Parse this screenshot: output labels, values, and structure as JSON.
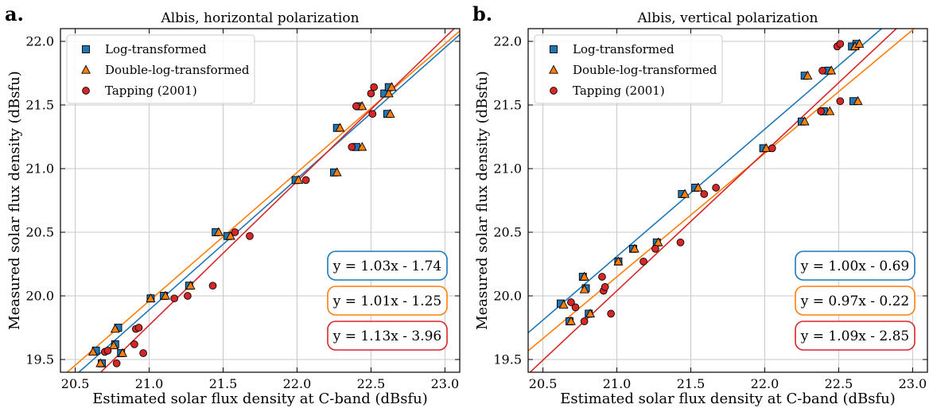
{
  "chart_data": [
    {
      "panel": "a.",
      "type": "scatter",
      "title": "Albis, horizontal polarization",
      "xlabel": "Estimated solar flux density at C-band (dBsfu)",
      "ylabel": "Measured solar flux density (dBsfu)",
      "xlim": [
        20.4,
        23.1
      ],
      "ylim": [
        19.4,
        22.1
      ],
      "xticks": [
        "20.5",
        "21.0",
        "21.5",
        "22.0",
        "22.5",
        "23.0"
      ],
      "yticks": [
        "19.5",
        "20.0",
        "20.5",
        "21.0",
        "21.5",
        "22.0"
      ],
      "grid": true,
      "legend_placement": "top-left",
      "series": [
        {
          "name": "Log-transformed",
          "marker": "square",
          "color": "#1f77b4",
          "fit_label": "y = 1.03x - 1.74",
          "fit": {
            "slope": 1.03,
            "intercept": -1.74
          },
          "points": [
            [
              20.64,
              19.57
            ],
            [
              20.68,
              19.47
            ],
            [
              20.77,
              19.62
            ],
            [
              20.79,
              19.75
            ],
            [
              20.81,
              19.55
            ],
            [
              21.01,
              19.98
            ],
            [
              21.1,
              20.0
            ],
            [
              21.27,
              20.08
            ],
            [
              21.45,
              20.5
            ],
            [
              21.53,
              20.47
            ],
            [
              21.99,
              20.91
            ],
            [
              22.25,
              20.97
            ],
            [
              22.27,
              21.32
            ],
            [
              22.4,
              21.17
            ],
            [
              22.42,
              21.49
            ],
            [
              22.59,
              21.59
            ],
            [
              22.61,
              21.43
            ],
            [
              22.62,
              21.64
            ]
          ]
        },
        {
          "name": "Double-log-transformed",
          "marker": "triangle",
          "color": "#ff7f0e",
          "fit_label": "y = 1.01x - 1.25",
          "fit": {
            "slope": 1.01,
            "intercept": -1.25
          },
          "points": [
            [
              20.62,
              19.56
            ],
            [
              20.67,
              19.47
            ],
            [
              20.76,
              19.61
            ],
            [
              20.77,
              19.74
            ],
            [
              20.82,
              19.55
            ],
            [
              21.01,
              19.98
            ],
            [
              21.11,
              20.0
            ],
            [
              21.28,
              20.08
            ],
            [
              21.47,
              20.5
            ],
            [
              21.55,
              20.47
            ],
            [
              22.01,
              20.91
            ],
            [
              22.27,
              20.97
            ],
            [
              22.29,
              21.32
            ],
            [
              22.44,
              21.17
            ],
            [
              22.44,
              21.49
            ],
            [
              22.62,
              21.59
            ],
            [
              22.63,
              21.43
            ],
            [
              22.64,
              21.64
            ]
          ]
        },
        {
          "name": "Tapping (2001)",
          "marker": "circle",
          "color": "#d62728",
          "fit_label": "y = 1.13x - 3.96",
          "fit": {
            "slope": 1.13,
            "intercept": -3.96
          },
          "points": [
            [
              20.7,
              19.56
            ],
            [
              20.72,
              19.57
            ],
            [
              20.78,
              19.47
            ],
            [
              20.91,
              19.74
            ],
            [
              20.93,
              19.75
            ],
            [
              20.9,
              19.62
            ],
            [
              20.96,
              19.55
            ],
            [
              21.17,
              19.98
            ],
            [
              21.26,
              20.0
            ],
            [
              21.43,
              20.08
            ],
            [
              21.58,
              20.5
            ],
            [
              21.68,
              20.47
            ],
            [
              22.06,
              20.91
            ],
            [
              22.37,
              21.17
            ],
            [
              22.4,
              21.49
            ],
            [
              22.5,
              21.59
            ],
            [
              22.51,
              21.43
            ],
            [
              22.52,
              21.64
            ]
          ]
        }
      ]
    },
    {
      "panel": "b.",
      "type": "scatter",
      "title": "Albis, vertical polarization",
      "xlabel": "Estimated solar flux density at C-band (dBsfu)",
      "ylabel": "Measured solar flux density (dBsfu)",
      "xlim": [
        20.4,
        23.1
      ],
      "ylim": [
        19.4,
        22.1
      ],
      "xticks": [
        "20.5",
        "21.0",
        "21.5",
        "22.0",
        "22.5",
        "23.0"
      ],
      "yticks": [
        "19.5",
        "20.0",
        "20.5",
        "21.0",
        "21.5",
        "22.0"
      ],
      "grid": true,
      "legend_placement": "top-left",
      "series": [
        {
          "name": "Log-transformed",
          "marker": "square",
          "color": "#1f77b4",
          "fit_label": "y = 1.00x - 0.69",
          "fit": {
            "slope": 1.0,
            "intercept": -0.69
          },
          "points": [
            [
              20.62,
              19.94
            ],
            [
              20.68,
              19.8
            ],
            [
              20.77,
              20.15
            ],
            [
              20.79,
              20.06
            ],
            [
              20.81,
              19.86
            ],
            [
              21.01,
              20.27
            ],
            [
              21.11,
              20.37
            ],
            [
              21.27,
              20.42
            ],
            [
              21.44,
              20.8
            ],
            [
              21.53,
              20.85
            ],
            [
              21.99,
              21.16
            ],
            [
              22.25,
              21.37
            ],
            [
              22.27,
              21.73
            ],
            [
              22.4,
              21.45
            ],
            [
              22.43,
              21.77
            ],
            [
              22.59,
              21.96
            ],
            [
              22.6,
              21.53
            ],
            [
              22.62,
              21.98
            ]
          ]
        },
        {
          "name": "Double-log-transformed",
          "marker": "triangle",
          "color": "#ff7f0e",
          "fit_label": "y = 0.97x - 0.22",
          "fit": {
            "slope": 0.97,
            "intercept": -0.22
          },
          "points": [
            [
              20.64,
              19.93
            ],
            [
              20.69,
              19.8
            ],
            [
              20.78,
              20.15
            ],
            [
              20.78,
              20.05
            ],
            [
              20.82,
              19.86
            ],
            [
              21.01,
              20.27
            ],
            [
              21.12,
              20.37
            ],
            [
              21.28,
              20.42
            ],
            [
              21.46,
              20.8
            ],
            [
              21.55,
              20.85
            ],
            [
              22.01,
              21.16
            ],
            [
              22.27,
              21.37
            ],
            [
              22.29,
              21.73
            ],
            [
              22.44,
              21.45
            ],
            [
              22.45,
              21.77
            ],
            [
              22.61,
              21.96
            ],
            [
              22.63,
              21.53
            ],
            [
              22.64,
              21.98
            ]
          ]
        },
        {
          "name": "Tapping (2001)",
          "marker": "circle",
          "color": "#d62728",
          "fit_label": "y = 1.09x - 2.85",
          "fit": {
            "slope": 1.09,
            "intercept": -2.85
          },
          "points": [
            [
              20.69,
              19.95
            ],
            [
              20.72,
              19.91
            ],
            [
              20.78,
              19.8
            ],
            [
              20.9,
              20.15
            ],
            [
              20.91,
              20.04
            ],
            [
              20.92,
              20.07
            ],
            [
              20.96,
              19.86
            ],
            [
              21.18,
              20.27
            ],
            [
              21.26,
              20.37
            ],
            [
              21.43,
              20.42
            ],
            [
              21.59,
              20.8
            ],
            [
              21.67,
              20.85
            ],
            [
              22.05,
              21.16
            ],
            [
              22.38,
              21.45
            ],
            [
              22.39,
              21.77
            ],
            [
              22.49,
              21.96
            ],
            [
              22.51,
              21.98
            ],
            [
              22.51,
              21.53
            ]
          ]
        }
      ]
    }
  ]
}
